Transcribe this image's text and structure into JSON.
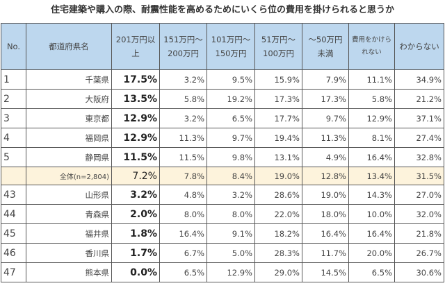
{
  "title": "住宅建築や購入の際、耐震性能を高めるためにいくら位の費用を掛けられると思うか",
  "headers": [
    "No.",
    "都道府県名",
    "201万円以上",
    "151万円～200万円",
    "101万円～150万円",
    "51万円～100万円",
    "～50万円未満",
    "費用をかけられない",
    "わからない"
  ],
  "rows": [
    {
      "no": "1",
      "pref": "千葉県",
      "v": [
        "17.5%",
        "3.2%",
        "9.5%",
        "15.9%",
        "7.9%",
        "11.1%",
        "34.9%"
      ]
    },
    {
      "no": "2",
      "pref": "大阪府",
      "v": [
        "13.5%",
        "5.8%",
        "19.2%",
        "17.3%",
        "17.3%",
        "5.8%",
        "21.2%"
      ]
    },
    {
      "no": "3",
      "pref": "東京都",
      "v": [
        "12.9%",
        "3.2%",
        "6.5%",
        "17.7%",
        "9.7%",
        "12.9%",
        "37.1%"
      ]
    },
    {
      "no": "4",
      "pref": "福岡県",
      "v": [
        "12.9%",
        "11.3%",
        "9.7%",
        "19.4%",
        "11.3%",
        "8.1%",
        "27.4%"
      ]
    },
    {
      "no": "5",
      "pref": "静岡県",
      "v": [
        "11.5%",
        "11.5%",
        "9.8%",
        "13.1%",
        "4.9%",
        "16.4%",
        "32.8%"
      ]
    },
    {
      "no": "",
      "pref": "全体(n=2,804)",
      "v": [
        "7.2%",
        "7.8%",
        "8.4%",
        "19.0%",
        "12.8%",
        "13.4%",
        "31.5%"
      ]
    },
    {
      "no": "43",
      "pref": "山形県",
      "v": [
        "3.2%",
        "4.8%",
        "3.2%",
        "28.6%",
        "19.0%",
        "14.3%",
        "27.0%"
      ]
    },
    {
      "no": "44",
      "pref": "青森県",
      "v": [
        "2.0%",
        "8.0%",
        "8.0%",
        "22.0%",
        "18.0%",
        "10.0%",
        "32.0%"
      ]
    },
    {
      "no": "45",
      "pref": "福井県",
      "v": [
        "1.8%",
        "16.4%",
        "9.1%",
        "18.2%",
        "16.4%",
        "16.4%",
        "21.8%"
      ]
    },
    {
      "no": "46",
      "pref": "香川県",
      "v": [
        "1.7%",
        "6.7%",
        "5.0%",
        "28.3%",
        "11.7%",
        "20.0%",
        "26.7%"
      ]
    },
    {
      "no": "47",
      "pref": "熊本県",
      "v": [
        "0.0%",
        "6.5%",
        "12.9%",
        "29.0%",
        "14.5%",
        "6.5%",
        "30.6%"
      ]
    }
  ]
}
